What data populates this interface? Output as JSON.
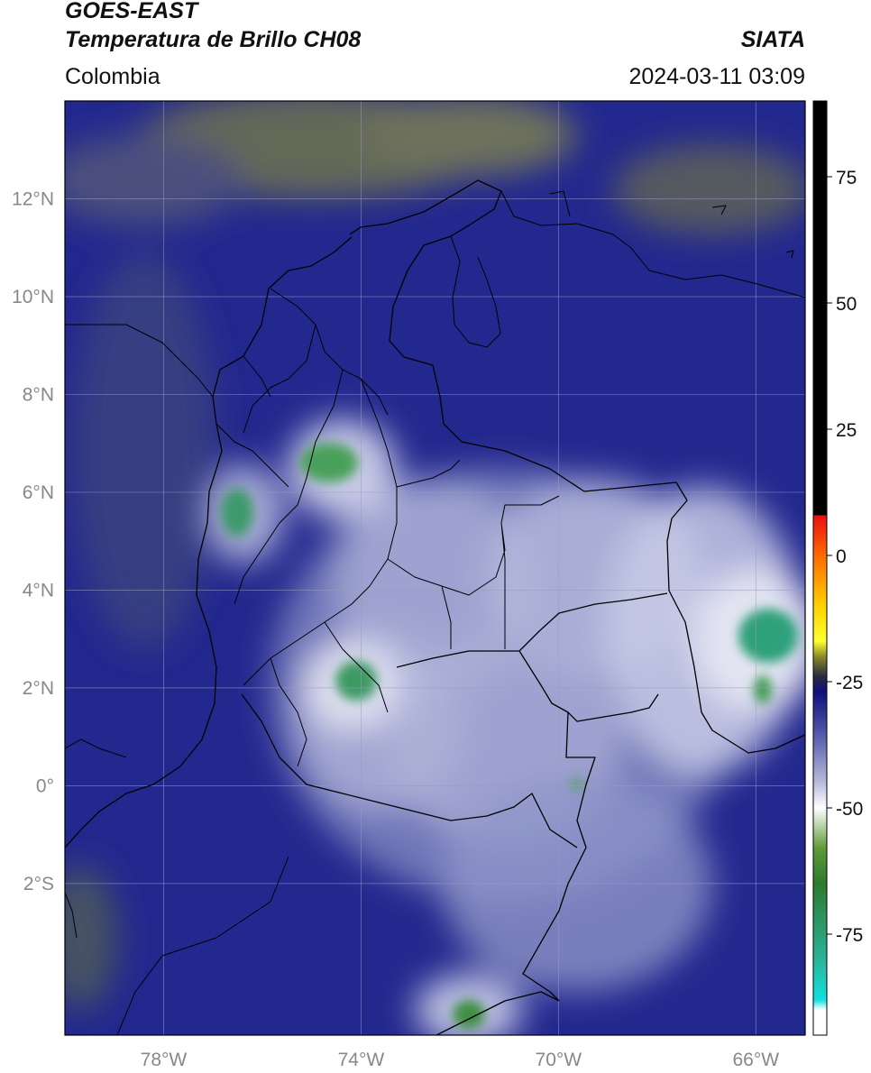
{
  "header": {
    "title_line1": "GOES-EAST",
    "title_line2": "Temperatura de Brillo CH08",
    "region": "Colombia",
    "source": "SIATA",
    "datetime": "2024-03-11 03:09"
  },
  "map": {
    "extent": {
      "lon_min": -80,
      "lon_max": -65,
      "lat_min": -5.1,
      "lat_max": 14
    },
    "lat_ticks": [
      {
        "value": 12,
        "label": "12°N"
      },
      {
        "value": 10,
        "label": "10°N"
      },
      {
        "value": 8,
        "label": "8°N"
      },
      {
        "value": 6,
        "label": "6°N"
      },
      {
        "value": 4,
        "label": "4°N"
      },
      {
        "value": 2,
        "label": "2°N"
      },
      {
        "value": 0,
        "label": "0°"
      },
      {
        "value": -2,
        "label": "2°S"
      }
    ],
    "lon_ticks": [
      {
        "value": -78,
        "label": "78°W"
      },
      {
        "value": -74,
        "label": "74°W"
      },
      {
        "value": -70,
        "label": "70°W"
      },
      {
        "value": -66,
        "label": "66°W"
      }
    ],
    "gridlines": true,
    "background_color": "#23288e",
    "cold_cloud_color": "#dcdfef",
    "convective_core_color": "#3aa36b",
    "border_color": "#000000"
  },
  "colorbar": {
    "min": -95,
    "max": 90,
    "ticks": [
      {
        "value": 75,
        "label": "75"
      },
      {
        "value": 50,
        "label": "50"
      },
      {
        "value": 25,
        "label": "25"
      },
      {
        "value": 0,
        "label": "0"
      },
      {
        "value": -25,
        "label": "-25"
      },
      {
        "value": -50,
        "label": "-50"
      },
      {
        "value": -75,
        "label": "-75"
      }
    ],
    "stops": [
      {
        "value": 90,
        "color": "#000000"
      },
      {
        "value": 8,
        "color": "#000000"
      },
      {
        "value": 7.9,
        "color": "#e81010"
      },
      {
        "value": 0,
        "color": "#ff6a00"
      },
      {
        "value": -10,
        "color": "#ffd200"
      },
      {
        "value": -17,
        "color": "#ffff30"
      },
      {
        "value": -20,
        "color": "#8a8a28"
      },
      {
        "value": -24,
        "color": "#2a2a40"
      },
      {
        "value": -27,
        "color": "#10107c"
      },
      {
        "value": -35,
        "color": "#4f55a8"
      },
      {
        "value": -45,
        "color": "#b8bcdc"
      },
      {
        "value": -50,
        "color": "#ffffff"
      },
      {
        "value": -58,
        "color": "#5f9a3a"
      },
      {
        "value": -65,
        "color": "#2e7a2e"
      },
      {
        "value": -80,
        "color": "#2bb39a"
      },
      {
        "value": -88,
        "color": "#10e0e0"
      },
      {
        "value": -90,
        "color": "#ffffff"
      },
      {
        "value": -95,
        "color": "#ffffff"
      }
    ]
  }
}
